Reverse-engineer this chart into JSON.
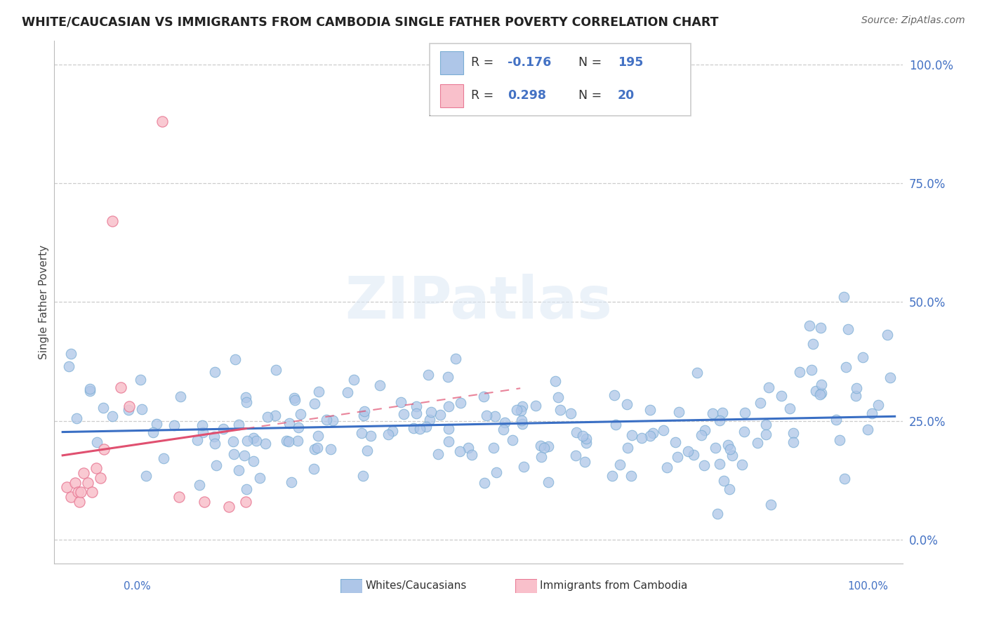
{
  "title": "WHITE/CAUCASIAN VS IMMIGRANTS FROM CAMBODIA SINGLE FATHER POVERTY CORRELATION CHART",
  "source": "Source: ZipAtlas.com",
  "ylabel": "Single Father Poverty",
  "blue_R": -0.176,
  "blue_N": 195,
  "pink_R": 0.298,
  "pink_N": 20,
  "blue_color": "#aec6e8",
  "blue_edge_color": "#7aadd4",
  "blue_line_color": "#3a6fc4",
  "pink_color": "#f9c0cb",
  "pink_edge_color": "#e87a95",
  "pink_line_color": "#e05070",
  "label_color": "#4472c4",
  "ytick_vals": [
    0.0,
    0.25,
    0.5,
    0.75,
    1.0
  ],
  "ytick_labels": [
    "0.0%",
    "25.0%",
    "50.0%",
    "75.0%",
    "100.0%"
  ],
  "ymin": -0.05,
  "ymax": 1.05,
  "xmin": -0.01,
  "xmax": 1.01
}
